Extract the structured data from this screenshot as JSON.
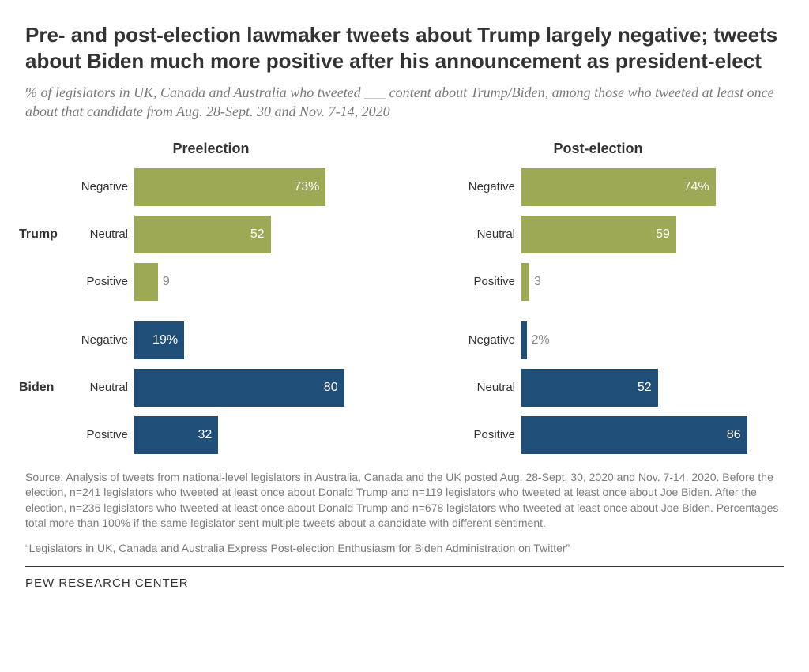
{
  "title": "Pre- and post-election lawmaker tweets about Trump largely negative; tweets about Biden much more positive after his announcement as president-elect",
  "subtitle": "% of legislators in UK, Canada and Australia who tweeted ___ content about Trump/Biden, among those who tweeted at least once about that candidate from Aug. 28-Sept. 30 and Nov. 7-14, 2020",
  "colors": {
    "trump": "#9da955",
    "biden": "#1f4e79",
    "value_outside": "#8a8a8a",
    "text": "#333333",
    "subtitle": "#7a7a7a"
  },
  "max_value": 100,
  "inside_threshold": 10,
  "panels": [
    {
      "title": "Preelection",
      "candidates": [
        {
          "name": "Trump",
          "color_key": "trump",
          "show_label": true,
          "rows": [
            {
              "label": "Negative",
              "value": 73,
              "suffix": "%"
            },
            {
              "label": "Neutral",
              "value": 52,
              "suffix": ""
            },
            {
              "label": "Positive",
              "value": 9,
              "suffix": ""
            }
          ]
        },
        {
          "name": "Biden",
          "color_key": "biden",
          "show_label": true,
          "rows": [
            {
              "label": "Negative",
              "value": 19,
              "suffix": "%"
            },
            {
              "label": "Neutral",
              "value": 80,
              "suffix": ""
            },
            {
              "label": "Positive",
              "value": 32,
              "suffix": ""
            }
          ]
        }
      ]
    },
    {
      "title": "Post-election",
      "candidates": [
        {
          "name": "Trump",
          "color_key": "trump",
          "show_label": false,
          "rows": [
            {
              "label": "Negative",
              "value": 74,
              "suffix": "%"
            },
            {
              "label": "Neutral",
              "value": 59,
              "suffix": ""
            },
            {
              "label": "Positive",
              "value": 3,
              "suffix": ""
            }
          ]
        },
        {
          "name": "Biden",
          "color_key": "biden",
          "show_label": false,
          "rows": [
            {
              "label": "Negative",
              "value": 2,
              "suffix": "%"
            },
            {
              "label": "Neutral",
              "value": 52,
              "suffix": ""
            },
            {
              "label": "Positive",
              "value": 86,
              "suffix": ""
            }
          ]
        }
      ]
    }
  ],
  "source": "Source: Analysis of tweets from national-level legislators in Australia, Canada and the UK posted Aug. 28-Sept. 30, 2020 and Nov. 7-14, 2020. Before the election, n=241 legislators who tweeted at least once about Donald Trump and n=119 legislators who tweeted at least once about Joe Biden. After the election, n=236 legislators who tweeted at least once about Donald Trump and n=678 legislators who tweeted at least once about Joe Biden. Percentages total more than 100% if the same legislator sent multiple tweets about a candidate with different sentiment.",
  "note": "“Legislators in UK, Canada and Australia Express Post-election Enthusiasm for Biden Administration on Twitter”",
  "footer": "PEW RESEARCH CENTER"
}
